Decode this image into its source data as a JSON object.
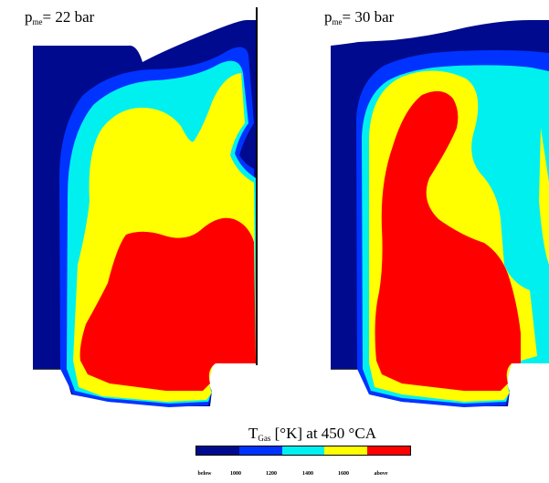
{
  "panels": [
    {
      "label_main": "p",
      "label_sub": "me",
      "label_rest": "= 22 bar"
    },
    {
      "label_main": "p",
      "label_sub": "me",
      "label_rest": "= 30 bar"
    }
  ],
  "legend": {
    "title_main": "T",
    "title_sub": "Gas",
    "title_rest": " [°K] at 450 °CA",
    "ticks": [
      "below",
      "1000",
      "1200",
      "1400",
      "1600",
      "above"
    ],
    "colors": [
      "#000a8e",
      "#0033ff",
      "#00f0f0",
      "#ffff00",
      "#ff0000"
    ]
  }
}
